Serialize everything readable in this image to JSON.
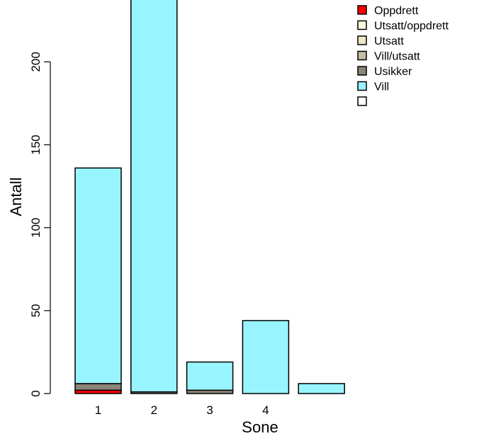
{
  "chart_data": {
    "type": "bar",
    "stacked": true,
    "xlabel": "Sone",
    "ylabel": "Antall",
    "ylim": [
      0,
      240
    ],
    "yticks": [
      0,
      50,
      100,
      150,
      200
    ],
    "categories": [
      "1",
      "2",
      "3",
      "4",
      ""
    ],
    "series": [
      {
        "name": "Oppdrett",
        "color": "#ff0000",
        "values": [
          2,
          0,
          0,
          0,
          0
        ]
      },
      {
        "name": "Utsatt/oppdrett",
        "color": "#fff8dc",
        "values": [
          0,
          0,
          0,
          0,
          0
        ]
      },
      {
        "name": "Utsatt",
        "color": "#efe6c8",
        "values": [
          0,
          0,
          0,
          0,
          0
        ]
      },
      {
        "name": "Vill/utsatt",
        "color": "#c8bca6",
        "values": [
          0,
          0,
          0,
          0,
          0
        ]
      },
      {
        "name": "Usikker",
        "color": "#8b8577",
        "values": [
          4,
          1,
          2,
          0,
          0
        ]
      },
      {
        "name": "Vill",
        "color": "#98f5ff",
        "values": [
          130,
          260,
          17,
          44,
          6
        ]
      },
      {
        "name": "",
        "color": "#ffffff",
        "values": [
          0,
          0,
          0,
          0,
          0
        ]
      }
    ],
    "legend_position": "top-right",
    "grid": false
  }
}
